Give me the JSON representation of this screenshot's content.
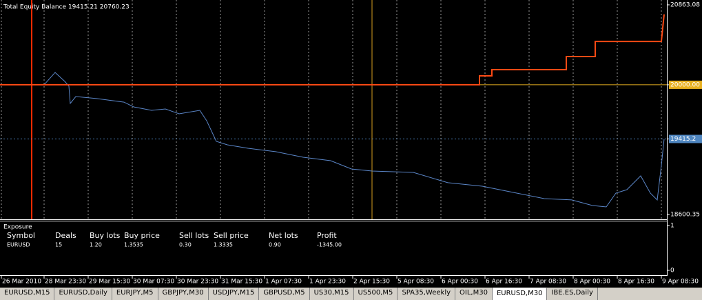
{
  "chart": {
    "type": "line",
    "title": "Total Equity Balance 19415.21 20760.23",
    "xlim": [
      0,
      484
    ],
    "xticks": [
      {
        "value": 1,
        "label": "26 Mar 2010"
      },
      {
        "value": 32,
        "label": "28 Mar 23:30"
      },
      {
        "value": 64,
        "label": "29 Mar 15:30"
      },
      {
        "value": 96,
        "label": "30 Mar 07:30"
      },
      {
        "value": 128,
        "label": "30 Mar 23:30"
      },
      {
        "value": 160,
        "label": "31 Mar 15:30"
      },
      {
        "value": 192,
        "label": "1 Apr 07:30"
      },
      {
        "value": 224,
        "label": "1 Apr 23:30"
      },
      {
        "value": 256,
        "label": "2 Apr 15:30"
      },
      {
        "value": 288,
        "label": "5 Apr 08:30"
      },
      {
        "value": 320,
        "label": "6 Apr 00:30"
      },
      {
        "value": 352,
        "label": "6 Apr 16:30"
      },
      {
        "value": 384,
        "label": "7 Apr 08:30"
      },
      {
        "value": 416,
        "label": "8 Apr 00:30"
      },
      {
        "value": 448,
        "label": "8 Apr 16:30"
      },
      {
        "value": 480,
        "label": "9 Apr 08:30"
      }
    ],
    "ylim": [
      18548,
      20915
    ],
    "yticks": [
      20863.08,
      {
        "value": 20000,
        "label": "20000.00"
      },
      19415.2,
      18600.35
    ],
    "grid": true,
    "series": [
      {
        "color": "#5b86c8",
        "x": [
          32,
          40,
          47,
          50,
          51,
          55,
          70,
          90,
          97,
          110,
          120,
          130,
          145,
          150,
          157,
          165,
          180,
          200,
          220,
          240,
          255,
          270,
          300,
          325,
          350,
          375,
          395,
          415,
          430,
          440,
          447,
          455,
          465,
          472,
          477,
          480,
          482
        ],
        "values": [
          20000,
          20133,
          20037,
          19985,
          19799,
          19873,
          19851,
          19813,
          19761,
          19724,
          19739,
          19687,
          19724,
          19612,
          19389,
          19352,
          19315,
          19278,
          19218,
          19181,
          19091,
          19069,
          19054,
          18943,
          18905,
          18831,
          18771,
          18757,
          18697,
          18682,
          18831,
          18868,
          19017,
          18831,
          18757,
          19129,
          19415.21
        ]
      },
      {
        "color": "#ff4a14",
        "x": [
          0,
          348,
          348,
          357,
          357,
          411,
          411,
          432,
          432,
          480,
          482
        ],
        "values": [
          20000,
          20000,
          20096,
          20096,
          20163,
          20163,
          20305,
          20305,
          20468,
          20468,
          20760.23
        ]
      }
    ],
    "vlines": [
      {
        "x": 23,
        "color": "#ff2a00"
      },
      {
        "x": 270,
        "color": "#d8a020"
      }
    ],
    "hlines": [
      {
        "y": 20000,
        "color": "#e8b020"
      },
      {
        "y": 19415.2,
        "color": "#4f86c0"
      }
    ]
  },
  "exposure": {
    "title": "Exposure",
    "ylim": [
      0,
      1
    ],
    "yticks": [
      1,
      0
    ],
    "columns": [
      "Symbol",
      "Deals",
      "Buy lots",
      "Buy price",
      "Sell lots",
      "Sell price",
      "Net lots",
      "Profit"
    ],
    "rows": [
      [
        "EURUSD",
        "15",
        "1.20",
        "1.3535",
        "0.30",
        "1.3335",
        "0.90",
        "-1345.00"
      ]
    ]
  },
  "tabs": [
    "EURUSD,M15",
    "EURUSD,Daily",
    "EURJPY,M5",
    "GBPJPY,M30",
    "USDJPY,M15",
    "GBPUSD,M5",
    "US30,M15",
    "US500,M5",
    "SPA35,Weekly",
    "OIL,M30",
    "EURUSD,M30",
    "IBE.ES,Daily"
  ],
  "active_tab": 10
}
